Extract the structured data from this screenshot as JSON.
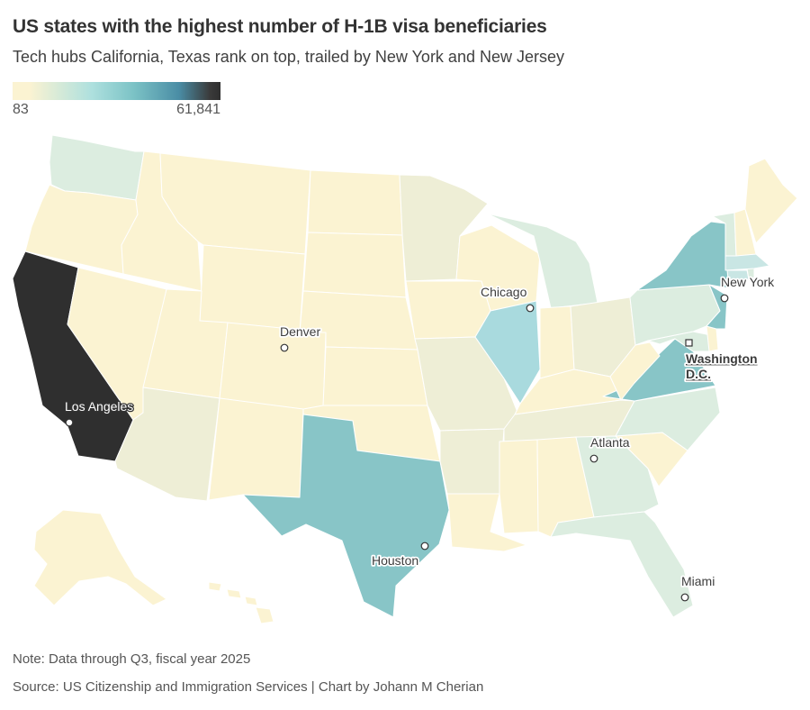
{
  "title": "US states with the highest number of H-1B visa beneficiaries",
  "subtitle": "Tech hubs California, Texas rank on top, trailed by New York and New Jersey",
  "legend": {
    "min_label": "83",
    "max_label": "61,841",
    "colors": [
      "#fbf3d2",
      "#e8efd6",
      "#aee0de",
      "#7cc3c6",
      "#4a8da5",
      "#2f2f2f"
    ]
  },
  "colors": {
    "very_low": "#fbf3d2",
    "low": "#f0f0d7",
    "low_mid": "#dcede0",
    "mid": "#c9e6e4",
    "mid_high": "#a9dade",
    "high": "#88c5c7",
    "very_high": "#2f2f2f",
    "state_border": "#ffffff"
  },
  "cities": [
    {
      "name": "Los Angeles"
    },
    {
      "name": "Denver"
    },
    {
      "name": "Chicago"
    },
    {
      "name": "New York"
    },
    {
      "name": "Washington D.C.",
      "line1": "Washington",
      "line2": "D.C."
    },
    {
      "name": "Atlanta"
    },
    {
      "name": "Houston"
    },
    {
      "name": "Miami"
    }
  ],
  "note": "Note: Data through Q3, fiscal year 2025",
  "source": "Source: US Citizenship and Immigration Services | Chart by Johann M Cherian"
}
